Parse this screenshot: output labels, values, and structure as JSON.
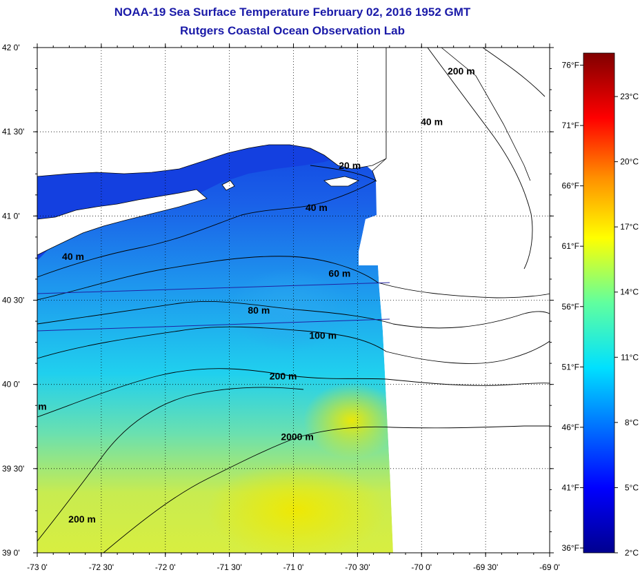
{
  "header": {
    "title": "NOAA-19 Sea Surface Temperature February 02, 2016 1952 GMT",
    "subtitle": "Rutgers Coastal Ocean Observation Lab"
  },
  "map": {
    "lon_range": [
      -73,
      -69
    ],
    "lat_range": [
      39,
      42
    ],
    "lon_ticks": [
      {
        "value": -73.0,
        "label": "-73 0'"
      },
      {
        "value": -72.5,
        "label": "-72 30'"
      },
      {
        "value": -72.0,
        "label": "-72 0'"
      },
      {
        "value": -71.5,
        "label": "-71 30'"
      },
      {
        "value": -71.0,
        "label": "-71 0'"
      },
      {
        "value": -70.5,
        "label": "-70 30'"
      },
      {
        "value": -70.0,
        "label": "-70 0'"
      },
      {
        "value": -69.5,
        "label": "-69 30'"
      },
      {
        "value": -69.0,
        "label": "-69 0'"
      }
    ],
    "lat_ticks": [
      {
        "value": 42.0,
        "label": "42 0'"
      },
      {
        "value": 41.5,
        "label": "41 30'"
      },
      {
        "value": 41.0,
        "label": "41 0'"
      },
      {
        "value": 40.5,
        "label": "40 30'"
      },
      {
        "value": 40.0,
        "label": "40 0'"
      },
      {
        "value": 39.5,
        "label": "39 30'"
      },
      {
        "value": 39.0,
        "label": "39 0'"
      }
    ],
    "grid": "dotted",
    "contour_labels": [
      {
        "text": "20 m",
        "lon": -70.56,
        "lat": 41.28
      },
      {
        "text": "40 m",
        "lon": -70.82,
        "lat": 41.03
      },
      {
        "text": "40 m",
        "lon": -72.72,
        "lat": 40.74
      },
      {
        "text": "60 m",
        "lon": -70.64,
        "lat": 40.64
      },
      {
        "text": "80 m",
        "lon": -71.27,
        "lat": 40.42
      },
      {
        "text": "100 m",
        "lon": -70.77,
        "lat": 40.27
      },
      {
        "text": "200 m",
        "lon": -71.08,
        "lat": 40.03
      },
      {
        "text": "2000 m",
        "lon": -70.97,
        "lat": 39.67
      },
      {
        "text": "200 m",
        "lon": -72.65,
        "lat": 39.18
      },
      {
        "text": "40 m",
        "lon": -69.92,
        "lat": 41.54
      },
      {
        "text": "200 m",
        "lon": -69.69,
        "lat": 41.84
      },
      {
        "text": "m",
        "lon": -72.96,
        "lat": 39.85
      }
    ]
  },
  "colorbar": {
    "celsius_ticks": [
      "23°C",
      "20°C",
      "17°C",
      "14°C",
      "11°C",
      "8°C",
      "5°C",
      "2°C"
    ],
    "fahrenheit_ticks": [
      "76°F",
      "71°F",
      "66°F",
      "61°F",
      "56°F",
      "51°F",
      "46°F",
      "41°F",
      "36°F"
    ],
    "range_celsius": [
      2,
      25
    ]
  }
}
